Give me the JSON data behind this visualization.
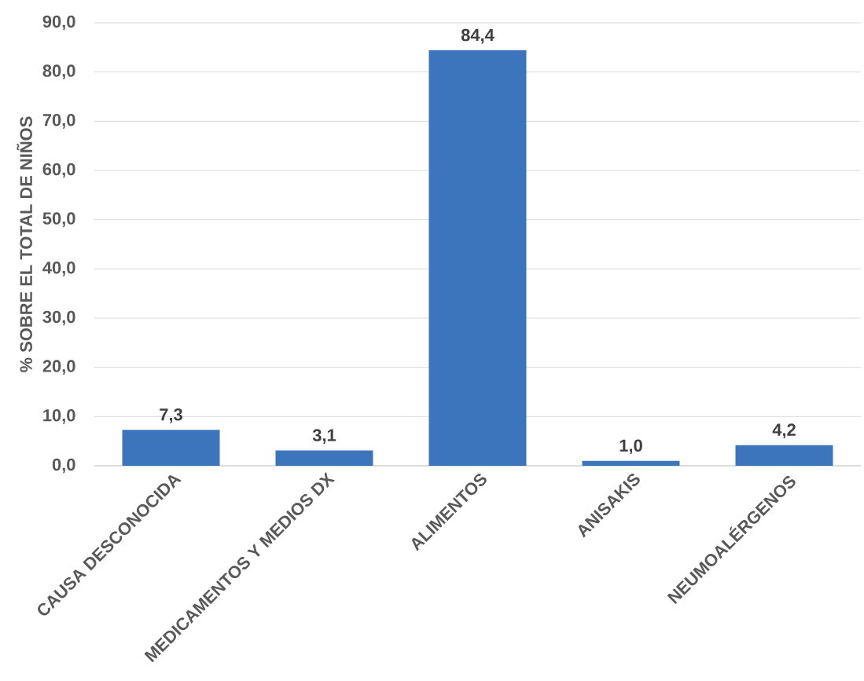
{
  "chart_data": {
    "type": "bar",
    "ylabel": "% SOBRE EL TOTAL DE NIÑOS",
    "categories": [
      "CAUSA DESCONOCIDA",
      "MEDICAMENTOS Y MEDIOS DX",
      "ALIMENTOS",
      "ANISAKIS",
      "NEUMOALÉRGENOS"
    ],
    "values": [
      7.3,
      3.1,
      84.4,
      1.0,
      4.2
    ],
    "value_labels": [
      "7,3",
      "3,1",
      "84,4",
      "1,0",
      "4,2"
    ],
    "color": "#3d75bd",
    "ylim": [
      0,
      90
    ],
    "yticks": [
      {
        "value": 0,
        "label": "0,0"
      },
      {
        "value": 10,
        "label": "10,0"
      },
      {
        "value": 20,
        "label": "20,0"
      },
      {
        "value": 30,
        "label": "30,0"
      },
      {
        "value": 40,
        "label": "40,0"
      },
      {
        "value": 50,
        "label": "50,0"
      },
      {
        "value": 60,
        "label": "60,0"
      },
      {
        "value": 70,
        "label": "70,0"
      },
      {
        "value": 80,
        "label": "80,0"
      },
      {
        "value": 90,
        "label": "90,0"
      }
    ],
    "grid": "y"
  }
}
